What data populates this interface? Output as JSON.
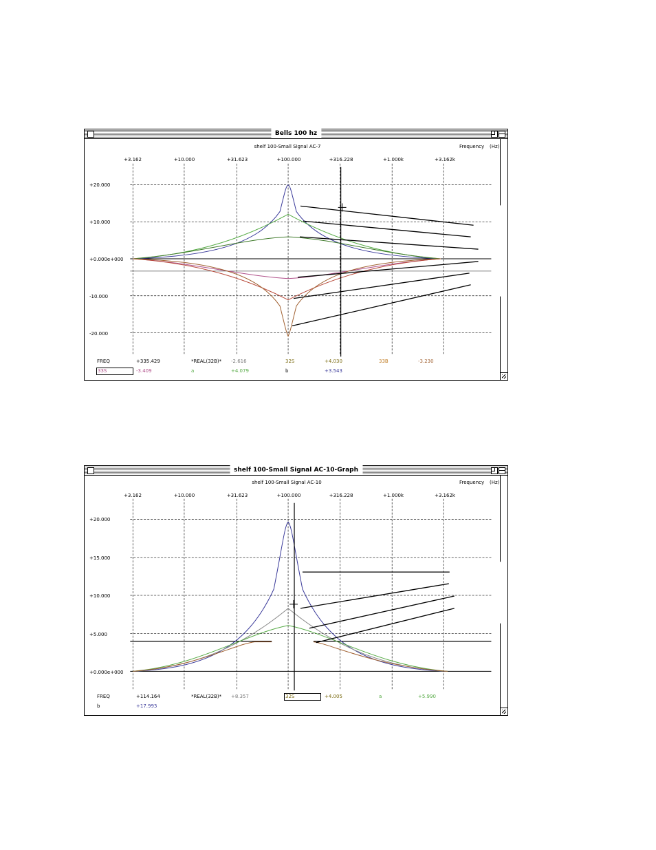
{
  "colors": {
    "blue": "#3a3a9a",
    "green": "#55aa44",
    "darkgreen": "#3f7a2a",
    "pink": "#b0508a",
    "brown": "#a06030",
    "red": "#b84a3a",
    "olive": "#7a6a10",
    "orange": "#c07a20",
    "grid": "#333333"
  },
  "window1": {
    "title": "Bells 100 hz",
    "subtitle": "shelf 100-Small Signal AC-7",
    "freq_label": "Frequency",
    "freq_unit": "(Hz)",
    "x_ticks": [
      "+3.162",
      "+10.000",
      "+31.623",
      "+100.000",
      "+316.228",
      "+1.000k",
      "+3.162k"
    ],
    "y_ticks": [
      "+20.000",
      "+10.000",
      "+0.000e+000",
      "-10.000",
      "-20.000"
    ],
    "readout": {
      "r1": [
        "FREQ",
        "+335.429",
        "*REAL(32B)*",
        "-2.616",
        "32S",
        "+4.030",
        "33B",
        "-3.230"
      ],
      "r2": [
        "33S",
        "-3.409",
        "a",
        "+4.079",
        "b",
        "+3.543"
      ]
    }
  },
  "window2": {
    "title": "shelf 100-Small Signal AC-10-Graph",
    "subtitle": "shelf 100-Small Signal AC-10",
    "freq_label": "Frequency",
    "freq_unit": "(Hz)",
    "x_ticks": [
      "+3.162",
      "+10.000",
      "+31.623",
      "+100.000",
      "+316.228",
      "+1.000k",
      "+3.162k"
    ],
    "y_ticks": [
      "+20.000",
      "+15.000",
      "+10.000",
      "+5.000",
      "+0.000e+000"
    ],
    "readout": {
      "r1": [
        "FREQ",
        "+114.164",
        "*REAL(32B)*",
        "+8.357",
        "32S",
        "+4.005",
        "a",
        "+5.990"
      ],
      "r2": [
        "b",
        "+17.993"
      ]
    }
  }
}
